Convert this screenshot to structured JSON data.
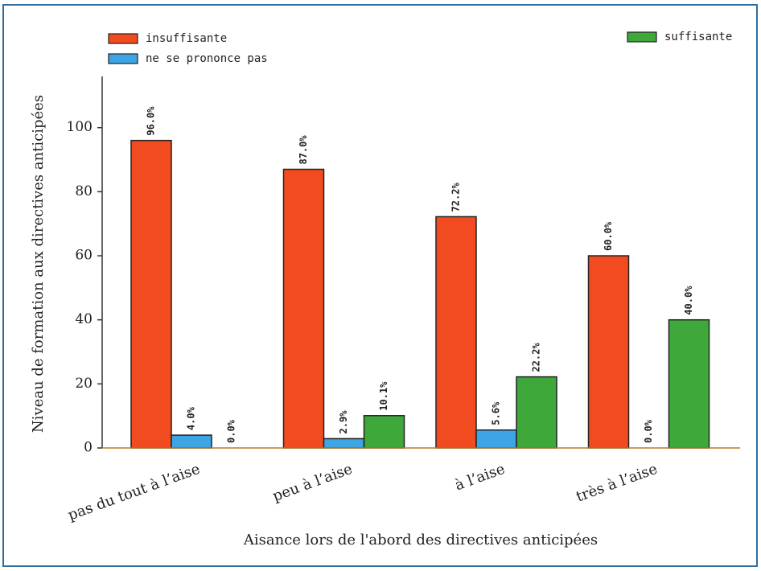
{
  "chart_data": {
    "type": "bar",
    "x_label": "Aisance lors de l'abord des directives anticipées",
    "y_label": "Niveau de formation aux directives anticipées",
    "categories": [
      "pas du tout à l’aise",
      "peu à l’aise",
      "à l’aise",
      "très à l’aise"
    ],
    "series": [
      {
        "name": "insuffisante",
        "color": "#f24b1f",
        "values": [
          96,
          87,
          72.2,
          60
        ],
        "value_labels": [
          "96.0%",
          "87.0%",
          "72.2%",
          "60.0%"
        ]
      },
      {
        "name": "ne se prononce pas",
        "color": "#3da5e3",
        "values": [
          4,
          2.9,
          5.6,
          0
        ],
        "value_labels": [
          "4.0%",
          "2.9%",
          "5.6%",
          "0.0%"
        ]
      },
      {
        "name": "suffisante",
        "color": "#3ea83a",
        "values": [
          0,
          10.1,
          22.2,
          40
        ],
        "value_labels": [
          "0.0%",
          "10.1%",
          "22.2%",
          "40.0%"
        ]
      }
    ],
    "ylim": [
      0,
      116
    ],
    "yticks": [
      0,
      20,
      40,
      60,
      80,
      100
    ]
  }
}
